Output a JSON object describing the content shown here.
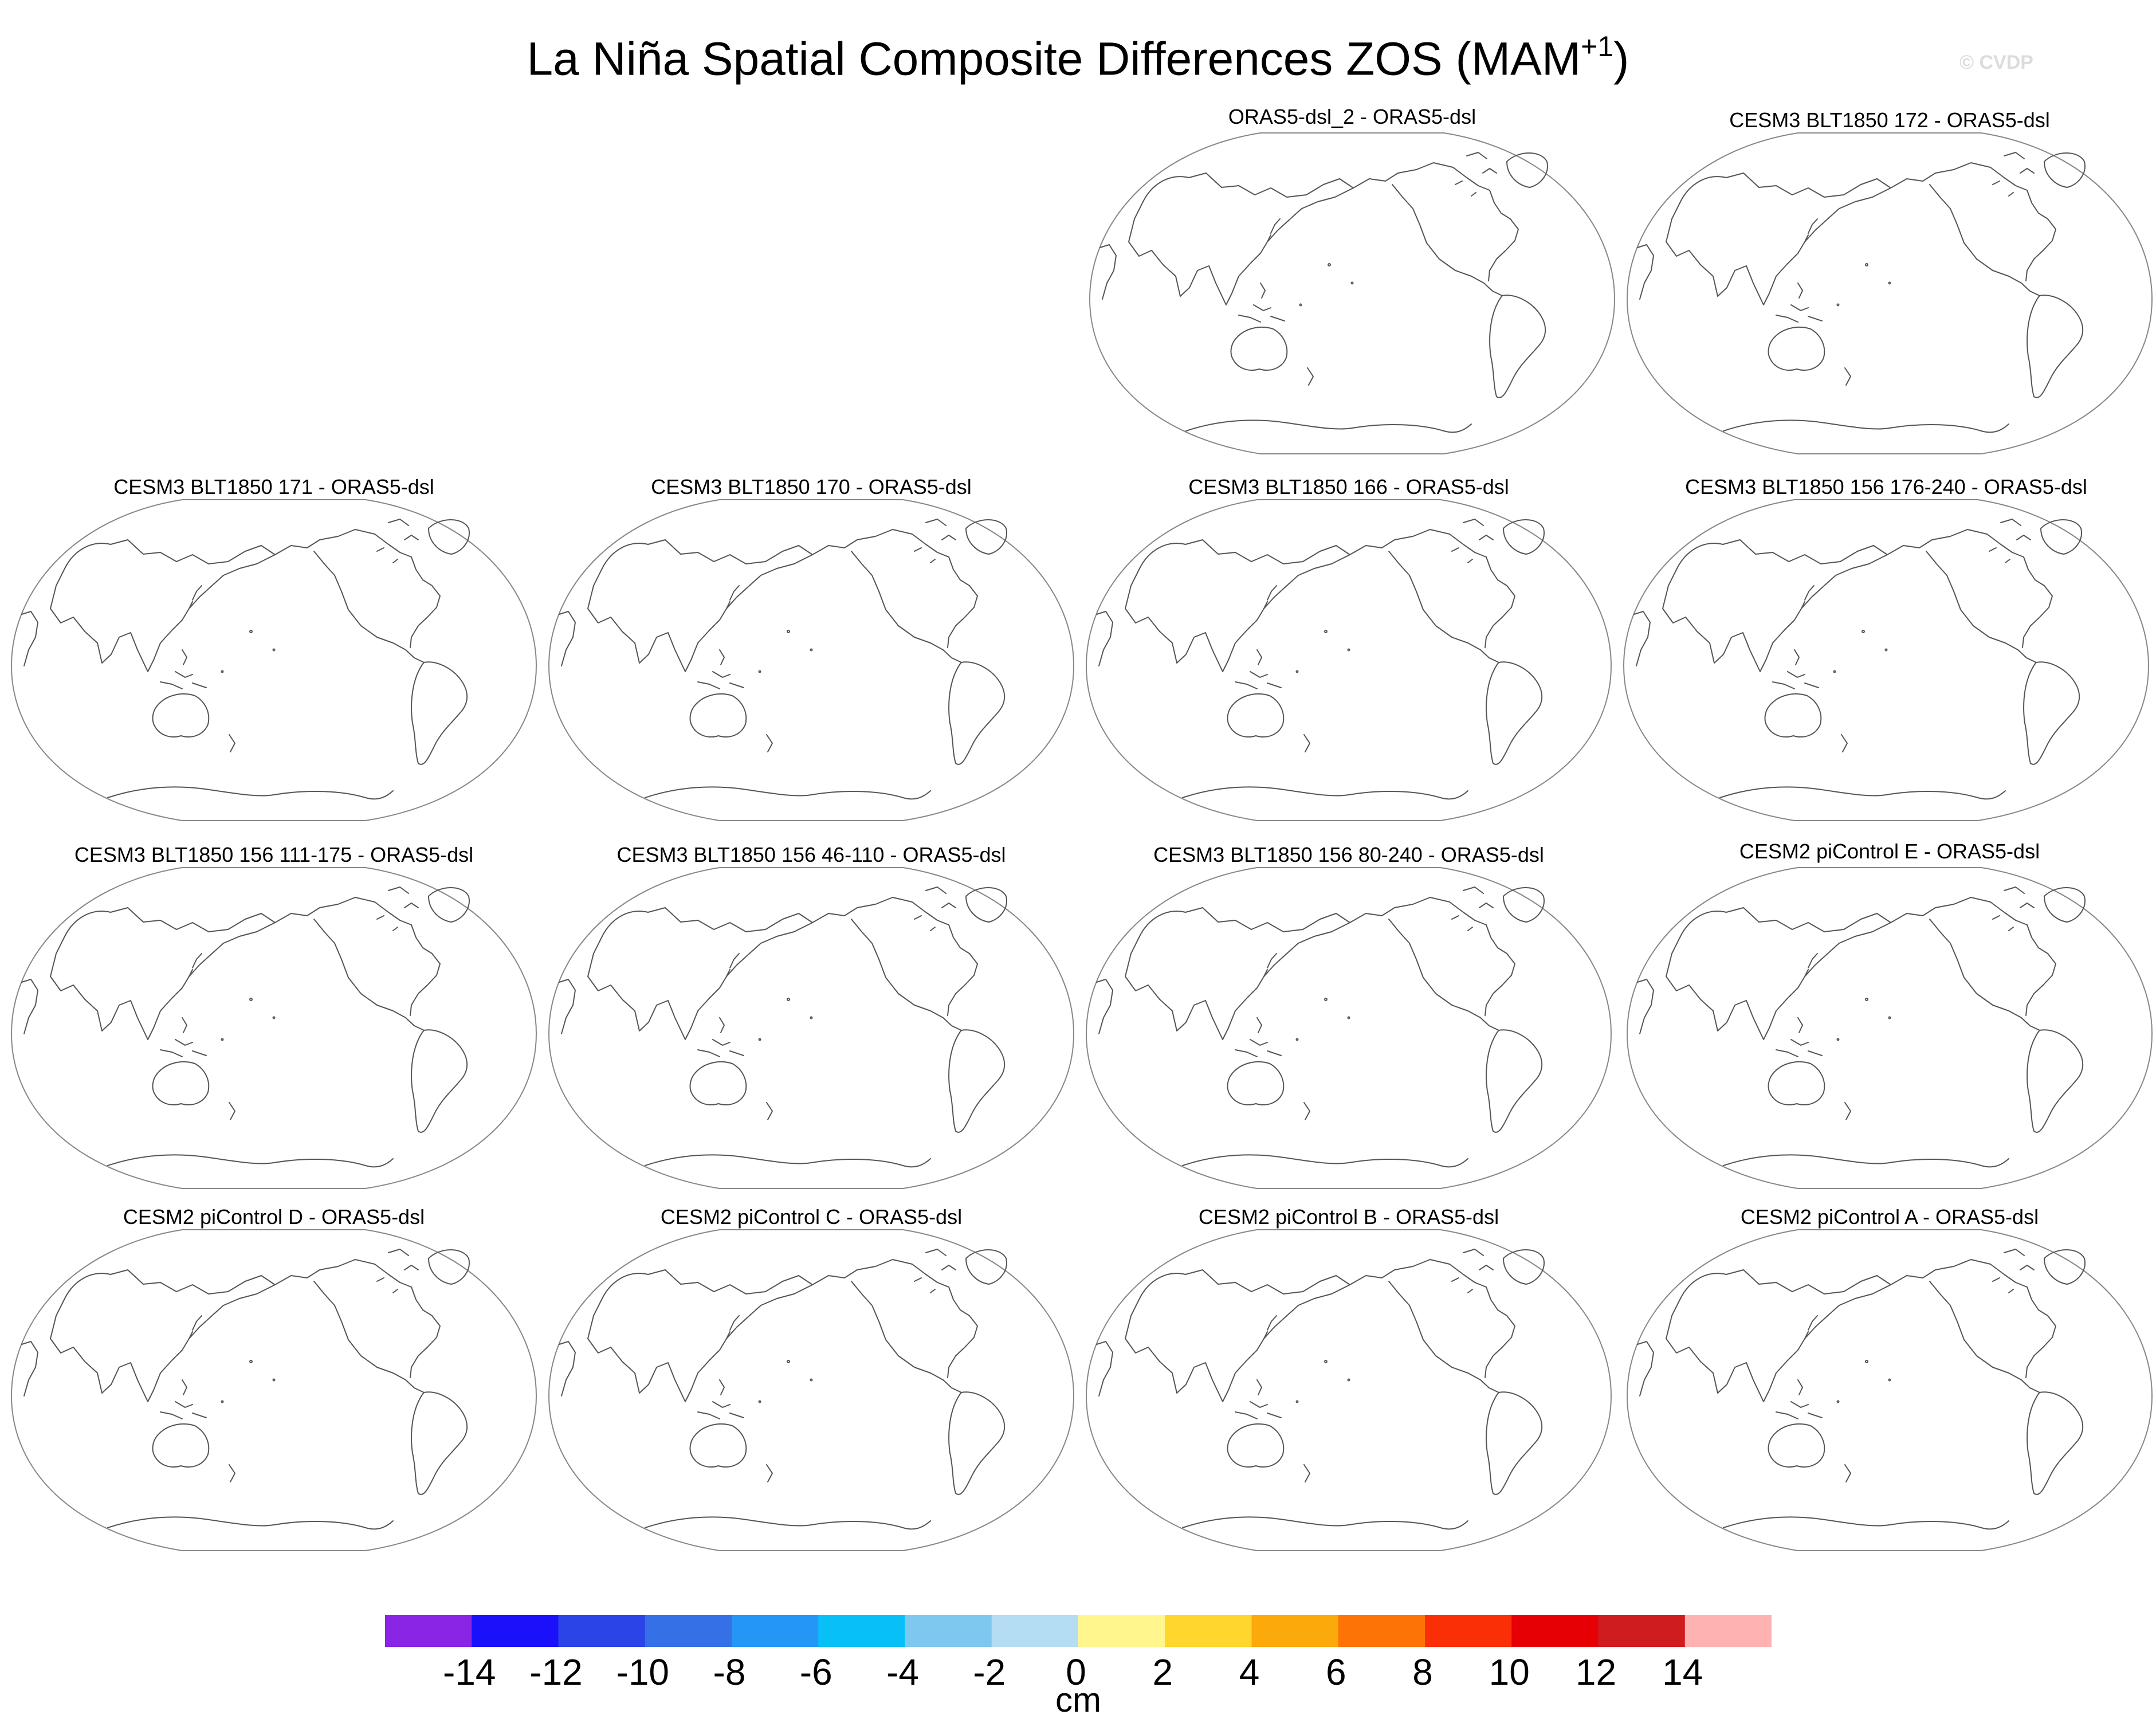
{
  "figure": {
    "title": "La Niña Spatial Composite Differences ZOS (MAM",
    "title_superscript": "+1",
    "title_close": ")",
    "watermark": "© CVDP"
  },
  "panels": [
    {
      "title": "ORAS5-dsl_2 - ORAS5-dsl"
    },
    {
      "title": "CESM3 BLT1850 172 - ORAS5-dsl"
    },
    {
      "title": "CESM3 BLT1850 171 - ORAS5-dsl"
    },
    {
      "title": "CESM3 BLT1850 170 - ORAS5-dsl"
    },
    {
      "title": "CESM3 BLT1850 166 - ORAS5-dsl"
    },
    {
      "title": "CESM3 BLT1850 156 176-240 - ORAS5-dsl"
    },
    {
      "title": "CESM3 BLT1850 156 111-175 - ORAS5-dsl"
    },
    {
      "title": "CESM3 BLT1850 156 46-110 - ORAS5-dsl"
    },
    {
      "title": "CESM3 BLT1850 156 80-240 - ORAS5-dsl"
    },
    {
      "title": "CESM2 piControl E - ORAS5-dsl"
    },
    {
      "title": "CESM2 piControl D - ORAS5-dsl"
    },
    {
      "title": "CESM2 piControl C - ORAS5-dsl"
    },
    {
      "title": "CESM2 piControl B - ORAS5-dsl"
    },
    {
      "title": "CESM2 piControl A - ORAS5-dsl"
    }
  ],
  "colorbar": {
    "units": "cm",
    "labels": [
      "-14",
      "-12",
      "-10",
      "-8",
      "-6",
      "-4",
      "-2",
      "0",
      "2",
      "4",
      "6",
      "8",
      "10",
      "12",
      "14"
    ],
    "colors": [
      "#8a25e6",
      "#1a10fa",
      "#2a44e8",
      "#3570e6",
      "#2496f6",
      "#09c0f6",
      "#7ec8f0",
      "#b4dcf3",
      "#fff68e",
      "#fed62e",
      "#fca90c",
      "#fd7305",
      "#fb2f06",
      "#e60005",
      "#cf1d1f",
      "#ffb2b2"
    ]
  }
}
